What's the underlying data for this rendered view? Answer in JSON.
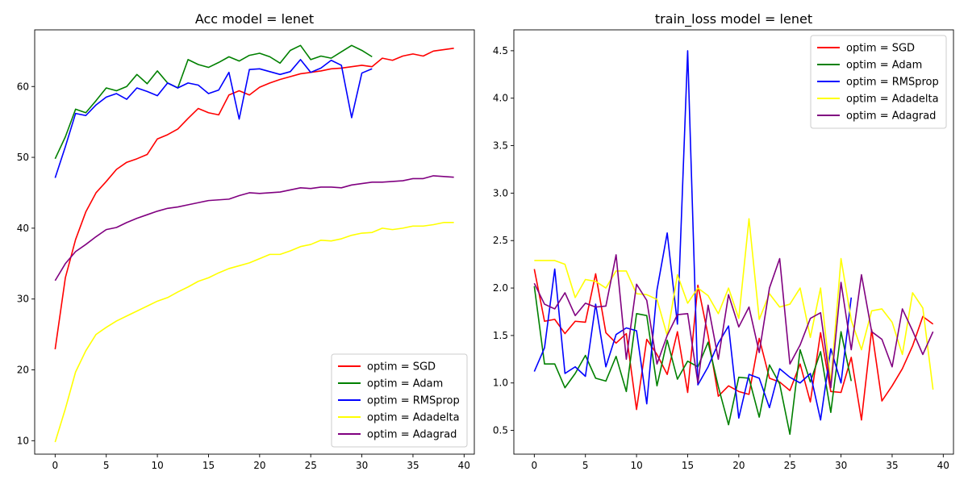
{
  "chart_data": [
    {
      "type": "line",
      "title": "Acc model = lenet",
      "xlabel": "",
      "ylabel": "",
      "xlim": [
        -2,
        41
      ],
      "ylim": [
        8.1,
        68.0
      ],
      "xticks": [
        0,
        5,
        10,
        15,
        20,
        25,
        30,
        35,
        40
      ],
      "yticks": [
        10,
        20,
        30,
        40,
        50,
        60
      ],
      "legend_position": "bottom-right",
      "grid": false,
      "series": [
        {
          "name": "optim = SGD",
          "color": "#ff0000",
          "values": [
            22.9,
            33.0,
            38.4,
            42.3,
            45.0,
            46.6,
            48.3,
            49.3,
            49.8,
            50.4,
            52.6,
            53.2,
            54.0,
            55.5,
            56.9,
            56.3,
            56.0,
            58.8,
            59.4,
            58.8,
            59.9,
            60.5,
            61.0,
            61.4,
            61.8,
            62.0,
            62.2,
            62.5,
            62.6,
            62.8,
            63.0,
            62.8,
            64.0,
            63.7,
            64.3,
            64.6,
            64.3,
            65.0,
            65.2,
            65.4
          ]
        },
        {
          "name": "optim = Adam",
          "color": "#008000",
          "values": [
            49.8,
            52.9,
            56.8,
            56.3,
            58.0,
            59.8,
            59.4,
            60.0,
            61.7,
            60.4,
            62.2,
            60.5,
            59.8,
            63.8,
            63.1,
            62.7,
            63.4,
            64.2,
            63.6,
            64.4,
            64.7,
            64.2,
            63.3,
            65.1,
            65.8,
            63.8,
            64.3,
            64.0,
            64.9,
            65.8,
            65.1,
            64.2
          ]
        },
        {
          "name": "optim = RMSprop",
          "color": "#0000ff",
          "values": [
            47.1,
            51.5,
            56.2,
            55.9,
            57.4,
            58.5,
            59.0,
            58.2,
            59.8,
            59.3,
            58.7,
            60.5,
            59.8,
            60.5,
            60.2,
            59.0,
            59.5,
            62.0,
            55.4,
            62.4,
            62.5,
            62.1,
            61.7,
            62.1,
            63.8,
            62.0,
            62.6,
            63.7,
            63.0,
            55.6,
            61.9,
            62.5
          ]
        },
        {
          "name": "optim = Adadelta",
          "color": "#ffff00",
          "values": [
            9.8,
            14.5,
            19.7,
            22.7,
            25.0,
            26.0,
            26.9,
            27.6,
            28.3,
            29.0,
            29.7,
            30.2,
            31.0,
            31.7,
            32.5,
            33.0,
            33.7,
            34.3,
            34.7,
            35.1,
            35.7,
            36.3,
            36.3,
            36.8,
            37.4,
            37.7,
            38.3,
            38.2,
            38.5,
            39.0,
            39.3,
            39.4,
            40.0,
            39.8,
            40.0,
            40.3,
            40.3,
            40.5,
            40.8,
            40.8
          ]
        },
        {
          "name": "optim = Adagrad",
          "color": "#800080",
          "values": [
            32.6,
            35.0,
            36.7,
            37.7,
            38.8,
            39.8,
            40.1,
            40.8,
            41.4,
            41.9,
            42.4,
            42.8,
            43.0,
            43.3,
            43.6,
            43.9,
            44.0,
            44.1,
            44.6,
            45.0,
            44.9,
            45.0,
            45.1,
            45.4,
            45.7,
            45.6,
            45.8,
            45.8,
            45.7,
            46.1,
            46.3,
            46.5,
            46.5,
            46.6,
            46.7,
            47.0,
            47.0,
            47.4,
            47.3,
            47.2
          ]
        }
      ]
    },
    {
      "type": "line",
      "title": "train_loss model = lenet",
      "xlabel": "",
      "ylabel": "",
      "xlim": [
        -2,
        41
      ],
      "ylim": [
        0.25,
        4.72
      ],
      "xticks": [
        0,
        5,
        10,
        15,
        20,
        25,
        30,
        35,
        40
      ],
      "yticks": [
        0.5,
        1.0,
        1.5,
        2.0,
        2.5,
        3.0,
        3.5,
        4.0,
        4.5
      ],
      "ytick_labels": [
        "0.5",
        "1.0",
        "1.5",
        "2.0",
        "2.5",
        "3.0",
        "3.5",
        "4.0",
        "4.5"
      ],
      "legend_position": "top-right",
      "grid": false,
      "series": [
        {
          "name": "optim = SGD",
          "color": "#ff0000",
          "values": [
            2.2,
            1.65,
            1.67,
            1.52,
            1.65,
            1.64,
            2.15,
            1.53,
            1.42,
            1.52,
            0.72,
            1.46,
            1.3,
            1.09,
            1.54,
            0.9,
            2.03,
            1.5,
            0.86,
            0.97,
            0.91,
            0.88,
            1.47,
            1.05,
            1.01,
            0.92,
            1.2,
            0.8,
            1.53,
            0.91,
            0.9,
            1.27,
            0.61,
            1.56,
            0.81,
            0.97,
            1.15,
            1.39,
            1.7,
            1.62
          ]
        },
        {
          "name": "optim = Adam",
          "color": "#008000",
          "values": [
            2.02,
            1.2,
            1.2,
            0.95,
            1.1,
            1.29,
            1.05,
            1.02,
            1.28,
            0.91,
            1.73,
            1.71,
            0.97,
            1.45,
            1.04,
            1.23,
            1.17,
            1.43,
            0.96,
            0.56,
            1.06,
            1.05,
            0.64,
            1.19,
            0.99,
            0.46,
            1.35,
            1.01,
            1.33,
            0.69,
            1.54,
            1.02
          ]
        },
        {
          "name": "optim = RMSprop",
          "color": "#0000ff",
          "values": [
            1.12,
            1.37,
            2.2,
            1.1,
            1.17,
            1.07,
            1.83,
            1.17,
            1.51,
            1.58,
            1.55,
            0.78,
            1.98,
            2.58,
            1.62,
            4.5,
            0.98,
            1.17,
            1.42,
            1.6,
            0.63,
            1.09,
            1.05,
            0.74,
            1.15,
            1.06,
            1.0,
            1.1,
            0.61,
            1.36,
            1.0,
            1.9
          ]
        },
        {
          "name": "optim = Adadelta",
          "color": "#ffff00",
          "values": [
            2.29,
            2.29,
            2.29,
            2.25,
            1.9,
            2.09,
            2.07,
            2.0,
            2.18,
            2.18,
            1.94,
            1.93,
            1.88,
            1.5,
            2.14,
            1.84,
            2.0,
            1.92,
            1.73,
            2.0,
            1.68,
            2.73,
            1.67,
            1.94,
            1.8,
            1.83,
            2.0,
            1.48,
            2.0,
            1.0,
            2.31,
            1.66,
            1.35,
            1.76,
            1.78,
            1.64,
            1.3,
            1.95,
            1.79,
            0.93
          ]
        },
        {
          "name": "optim = Adagrad",
          "color": "#800080",
          "values": [
            2.05,
            1.83,
            1.78,
            1.95,
            1.71,
            1.84,
            1.8,
            1.81,
            2.35,
            1.25,
            2.04,
            1.87,
            1.2,
            1.5,
            1.72,
            1.73,
            1.0,
            1.82,
            1.25,
            1.93,
            1.59,
            1.8,
            1.32,
            2.0,
            2.31,
            1.2,
            1.4,
            1.68,
            1.74,
            0.95,
            2.06,
            1.35,
            2.14,
            1.54,
            1.46,
            1.17,
            1.78,
            1.55,
            1.3,
            1.54
          ]
        }
      ]
    }
  ]
}
